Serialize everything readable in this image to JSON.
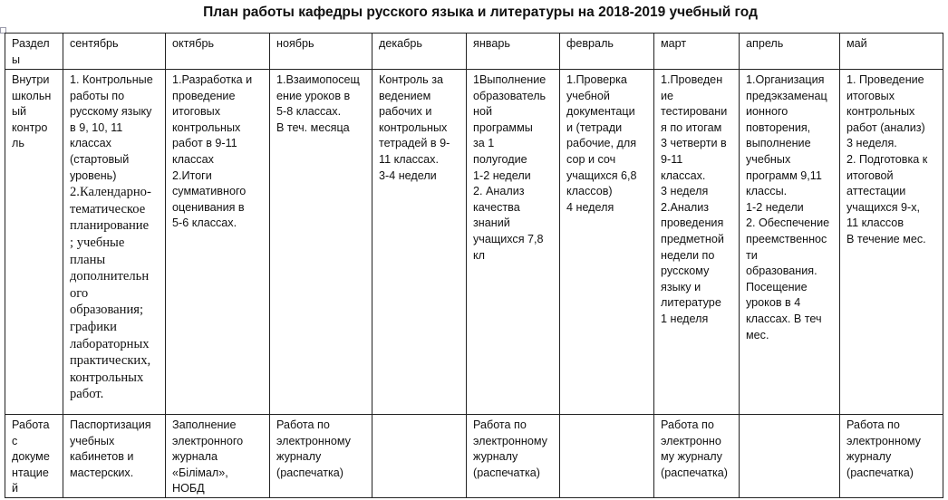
{
  "title": "План работы кафедры  русского языка и литературы  на 2018-2019 учебный год",
  "headers": [
    "Раздел\nы",
    "сентябрь",
    "октябрь",
    "ноябрь",
    "декабрь",
    "январь",
    "февраль",
    "март",
    "апрель",
    "май"
  ],
  "rows": [
    {
      "section": "Внутри\nшкольн\nый\nконтро\nль",
      "september": {
        "part1": "1. Контрольные\nработы по\nрусскому языку\nв  9, 10, 11\nклассах\n(стартовый\nуровень)",
        "part2": "2.Календарно-\nтематическое\nпланирование\n; учебные\nпланы\nдополнительн\nого\nобразования;\nграфики\nлабораторных\nпрактических,\nконтрольных\nработ."
      },
      "cells": [
        "1.Разработка и\nпроведение\nитоговых\nконтрольных\nработ в 9-11\nклассах\n2.Итоги\nсуммативного\nоценивания в\n5-6 классах.",
        "1.Взаимопосещ\nение  уроков в\n5-8  классах.\nВ теч.  месяца",
        "Контроль за\nведением\nрабочих и\nконтрольных\nтетрадей в 9-\n11 классах.\n3-4 недели",
        "1Выполнение\nобразователь\nной\nпрограммы\nза 1\nполугодие\n1-2 недели\n2. Анализ\nкачества\nзнаний\nучащихся 7,8\nкл",
        "1.Проверка\nучебной\nдокументаци\nи (тетради\nрабочие, для\nсор и соч\nучащихся 6,8\nклассов)\n4 неделя",
        "1.Проведен\nие\nтестировани\nя по итогам\n3 четверти в\n9-11\nклассах.\n3 неделя\n2.Анализ\nпроведения\nпредметной\nнедели по\nрусскому\nязыку и\nлитературе\n1 неделя",
        "1.Организация\nпредэкзаменац\nионного\nповторения,\nвыполнение\nучебных\nпрограмм 9,11\nклассы.\n1-2 недели\n2. Обеспечение\nпреемственнос\nти\nобразования.\nПосещение\nуроков в 4\nклассах. В теч\nмес.",
        "1. Проведение\nитоговых\nконтрольных\nработ (анализ)\n3 неделя.\n2. Подготовка к\nитоговой\nаттестации\nучащихся 9-х,\n11 классов\nВ течение мес."
      ]
    },
    {
      "section": "Работа\nс\nдокуме\nнтацие\nй",
      "cells": [
        "Паспортизация\nучебных\nкабинетов и\nмастерских.",
        "Заполнение\nэлектронного\nжурнала\n«Білімал»,\nНОБД",
        "Работа по\nэлектронному\nжурналу\n(распечатка)",
        "",
        "Работа по\nэлектронному\nжурналу\n(распечатка)",
        "",
        "Работа по\nэлектронно\nму журналу\n(распечатка)",
        "",
        "Работа по\nэлектронному\nжурналу\n(распечатка)"
      ]
    }
  ]
}
